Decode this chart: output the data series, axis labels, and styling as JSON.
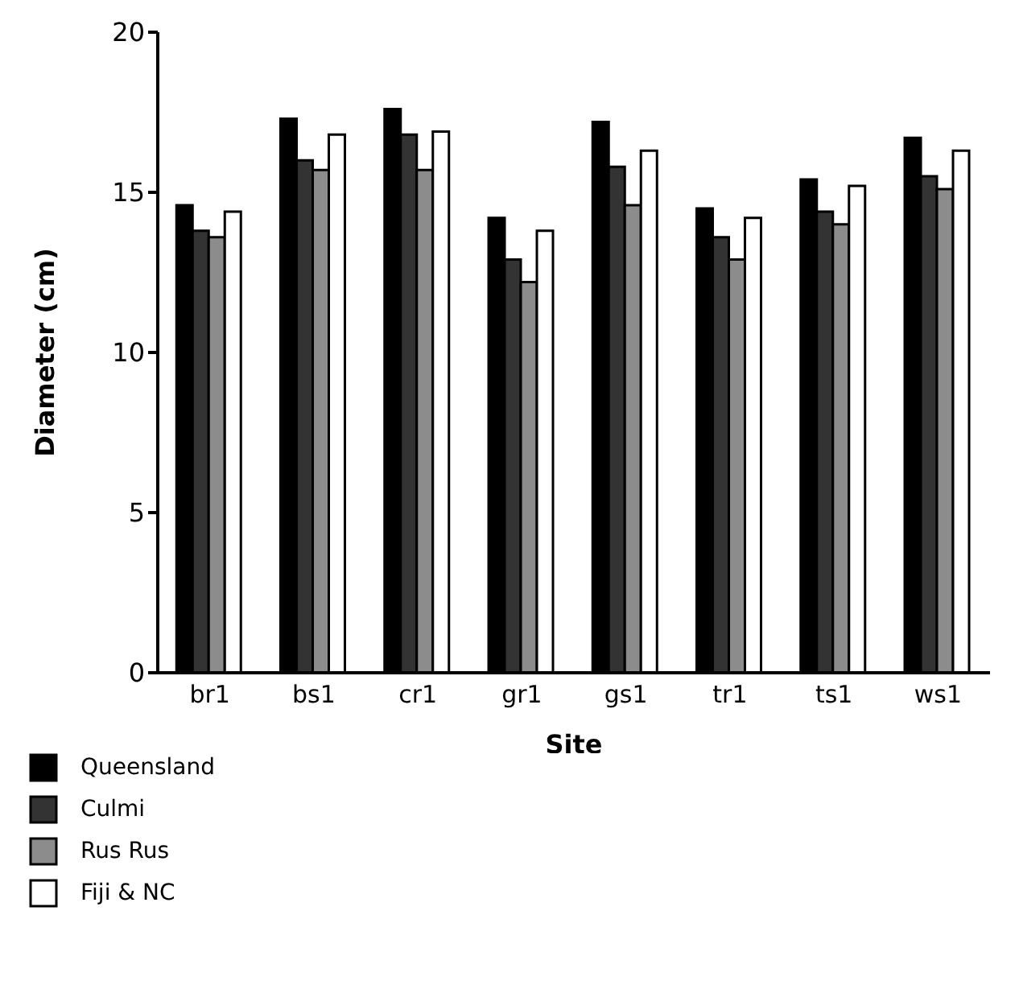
{
  "chart_data": {
    "type": "bar",
    "xlabel": "Site",
    "ylabel": "Diameter (cm)",
    "categories": [
      "br1",
      "bs1",
      "cr1",
      "gr1",
      "gs1",
      "tr1",
      "ts1",
      "ws1"
    ],
    "series": [
      {
        "name": "Queensland",
        "color": "#000000",
        "values": [
          14.6,
          17.3,
          17.6,
          14.2,
          17.2,
          14.5,
          15.4,
          16.7
        ]
      },
      {
        "name": "Culmi",
        "color": "#333333",
        "values": [
          13.8,
          16.0,
          16.8,
          12.9,
          15.8,
          13.6,
          14.4,
          15.5
        ]
      },
      {
        "name": "Rus Rus",
        "color": "#8c8c8c",
        "values": [
          13.6,
          15.7,
          15.7,
          12.2,
          14.6,
          12.9,
          14.0,
          15.1
        ]
      },
      {
        "name": "Fiji & NC",
        "color": "#ffffff",
        "values": [
          14.4,
          16.8,
          16.9,
          13.8,
          16.3,
          14.2,
          15.2,
          16.3
        ]
      }
    ],
    "ylim": [
      0,
      20
    ],
    "yticks": [
      0,
      5,
      10,
      15,
      20
    ],
    "grid": false,
    "legend": "bottom left"
  }
}
